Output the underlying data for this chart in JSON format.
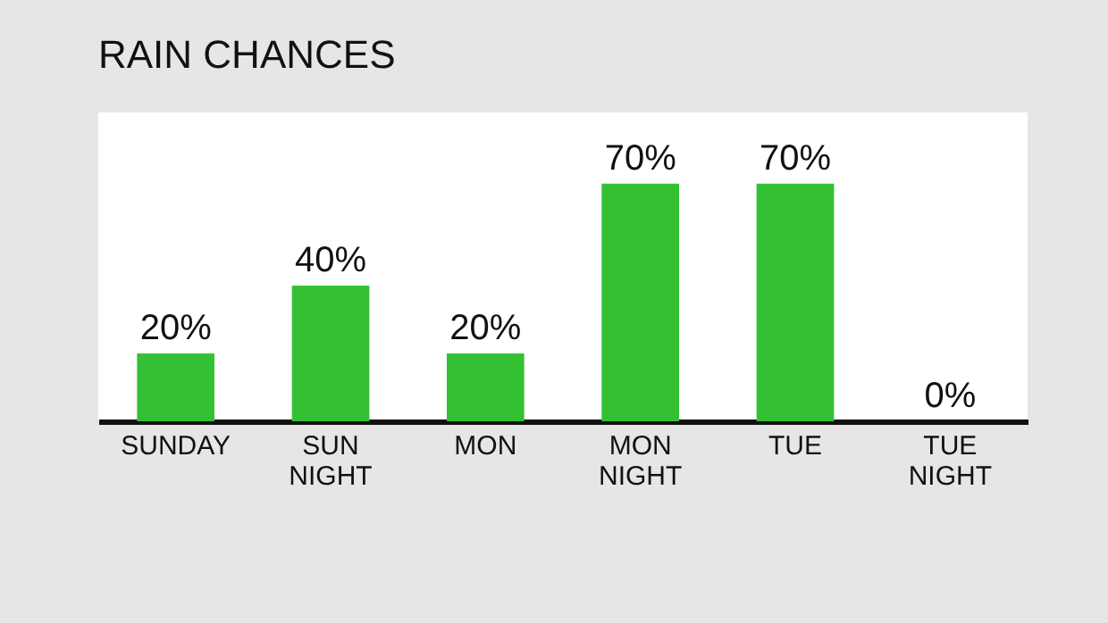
{
  "chart_data": {
    "type": "bar",
    "title": "RAIN CHANCES",
    "categories": [
      "SUNDAY",
      "SUN NIGHT",
      "MON",
      "MON NIGHT",
      "TUE",
      "TUE NIGHT"
    ],
    "values": [
      20,
      40,
      20,
      70,
      70,
      0
    ],
    "value_labels": [
      "20%",
      "40%",
      "20%",
      "70%",
      "70%",
      "0%"
    ],
    "color": "#33c133",
    "grid": false
  }
}
